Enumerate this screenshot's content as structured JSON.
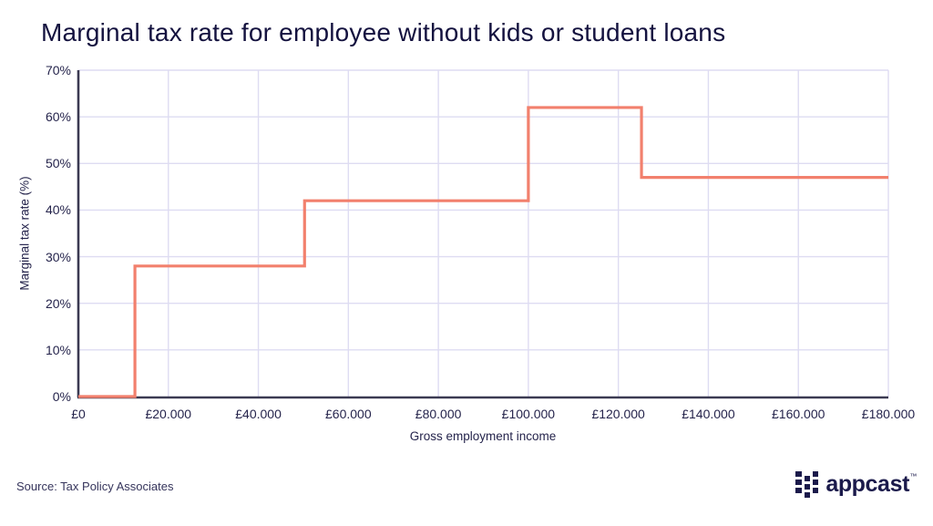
{
  "title": "Marginal tax rate for employee without kids or student loans",
  "chart_data": {
    "type": "line",
    "line_style": "step",
    "title": "Marginal tax rate for employee without kids or student loans",
    "xlabel": "Gross employment income",
    "ylabel": "Marginal tax rate (%)",
    "xlim": [
      0,
      180000
    ],
    "ylim": [
      0,
      70
    ],
    "grid": true,
    "legend": false,
    "x_ticks": [
      0,
      20000,
      40000,
      60000,
      80000,
      100000,
      120000,
      140000,
      160000,
      180000
    ],
    "x_tick_labels": [
      "£0",
      "£20.000",
      "£40.000",
      "£60.000",
      "£80.000",
      "£100.000",
      "£120.000",
      "£140.000",
      "£160.000",
      "£180.000"
    ],
    "y_ticks": [
      0,
      10,
      20,
      30,
      40,
      50,
      60,
      70
    ],
    "y_tick_labels": [
      "0%",
      "10%",
      "20%",
      "30%",
      "40%",
      "50%",
      "60%",
      "70%"
    ],
    "series": [
      {
        "name": "Marginal tax rate",
        "color": "#f2806d",
        "steps": [
          {
            "from": 0,
            "to": 12570,
            "rate": 0
          },
          {
            "from": 12570,
            "to": 50270,
            "rate": 28
          },
          {
            "from": 50270,
            "to": 100000,
            "rate": 42
          },
          {
            "from": 100000,
            "to": 125140,
            "rate": 62
          },
          {
            "from": 125140,
            "to": 180000,
            "rate": 47
          }
        ]
      }
    ]
  },
  "footer": {
    "source": "Source: Tax Policy Associates",
    "logo_text": "appcast",
    "logo_tm": "™",
    "logo_icon": "appcast-dot-grid-icon"
  },
  "colors": {
    "background": "#ffffff",
    "line": "#f2806d",
    "grid": "#dedcf2",
    "axis": "#3b3a52",
    "text": "#25244c",
    "title_text": "#14123f"
  }
}
